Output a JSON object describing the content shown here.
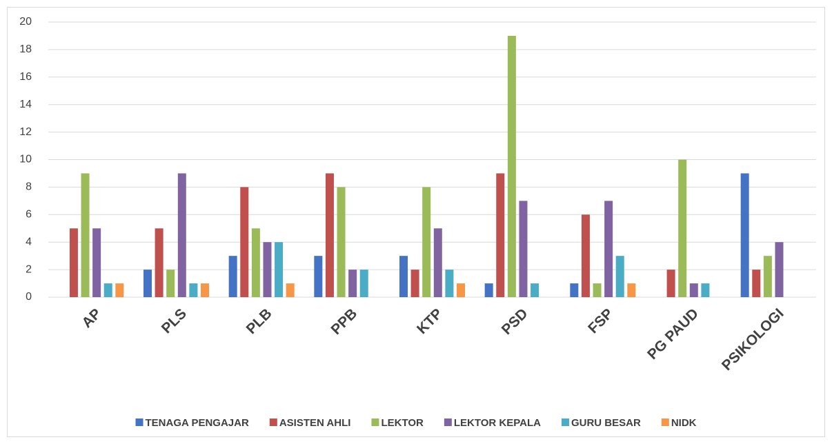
{
  "chart_data": {
    "type": "bar",
    "categories": [
      "AP",
      "PLS",
      "PLB",
      "PPB",
      "KTP",
      "PSD",
      "FSP",
      "PG PAUD",
      "PSIKOLOGI"
    ],
    "series": [
      {
        "name": "TENAGA PENGAJAR",
        "color": "#4472c4",
        "values": [
          0,
          2,
          3,
          3,
          3,
          1,
          1,
          0,
          9
        ]
      },
      {
        "name": "ASISTEN AHLI",
        "color": "#c0504d",
        "values": [
          5,
          5,
          8,
          9,
          2,
          9,
          6,
          2,
          2
        ]
      },
      {
        "name": "LEKTOR",
        "color": "#9bbb59",
        "values": [
          9,
          2,
          5,
          8,
          8,
          19,
          1,
          10,
          3
        ]
      },
      {
        "name": "LEKTOR KEPALA",
        "color": "#8064a2",
        "values": [
          5,
          9,
          4,
          2,
          5,
          7,
          7,
          1,
          4
        ]
      },
      {
        "name": "GURU BESAR",
        "color": "#4bacc6",
        "values": [
          1,
          1,
          4,
          2,
          2,
          1,
          3,
          1,
          0
        ]
      },
      {
        "name": "NIDK",
        "color": "#f79646",
        "values": [
          1,
          1,
          1,
          0,
          1,
          0,
          1,
          0,
          0
        ]
      }
    ],
    "ylim": [
      0,
      20
    ],
    "yticks": [
      0,
      2,
      4,
      6,
      8,
      10,
      12,
      14,
      16,
      18,
      20
    ],
    "grid": true,
    "legend": "bottom"
  }
}
